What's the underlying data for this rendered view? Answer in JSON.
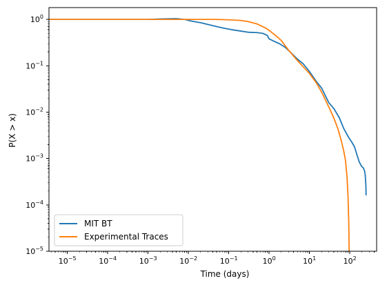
{
  "chart_data": {
    "type": "line",
    "title": "",
    "xlabel": "Time (days)",
    "ylabel": "P(X > x)",
    "xscale": "log",
    "yscale": "log",
    "xlim": [
      3.5e-06,
      460
    ],
    "ylim": [
      1e-05,
      1.8
    ],
    "x_ticks": [
      {
        "value": 1e-05,
        "base": "10",
        "exp": "−5"
      },
      {
        "value": 0.0001,
        "base": "10",
        "exp": "−4"
      },
      {
        "value": 0.001,
        "base": "10",
        "exp": "−3"
      },
      {
        "value": 0.01,
        "base": "10",
        "exp": "−2"
      },
      {
        "value": 0.1,
        "base": "10",
        "exp": "−1"
      },
      {
        "value": 1,
        "base": "10",
        "exp": "0"
      },
      {
        "value": 10,
        "base": "10",
        "exp": "1"
      },
      {
        "value": 100,
        "base": "10",
        "exp": "2"
      }
    ],
    "y_ticks": [
      {
        "value": 1e-05,
        "base": "10",
        "exp": "−5"
      },
      {
        "value": 0.0001,
        "base": "10",
        "exp": "−4"
      },
      {
        "value": 0.001,
        "base": "10",
        "exp": "−3"
      },
      {
        "value": 0.01,
        "base": "10",
        "exp": "−2"
      },
      {
        "value": 0.1,
        "base": "10",
        "exp": "−1"
      },
      {
        "value": 1,
        "base": "10",
        "exp": "0"
      }
    ],
    "grid": false,
    "legend_position": "lower-left",
    "series": [
      {
        "name": "MIT BT",
        "color": "#1f77b4",
        "points": [
          [
            3.5e-06,
            1.0
          ],
          [
            1e-05,
            1.0
          ],
          [
            0.0001,
            1.0
          ],
          [
            0.001,
            1.0
          ],
          [
            0.002,
            1.02
          ],
          [
            0.005,
            1.04
          ],
          [
            0.008,
            1.0
          ],
          [
            0.012,
            0.92
          ],
          [
            0.02,
            0.85
          ],
          [
            0.03,
            0.78
          ],
          [
            0.05,
            0.7
          ],
          [
            0.08,
            0.64
          ],
          [
            0.12,
            0.6
          ],
          [
            0.2,
            0.56
          ],
          [
            0.3,
            0.53
          ],
          [
            0.5,
            0.52
          ],
          [
            0.7,
            0.5
          ],
          [
            0.9,
            0.45
          ],
          [
            1.0,
            0.38
          ],
          [
            1.3,
            0.34
          ],
          [
            1.8,
            0.3
          ],
          [
            2.5,
            0.25
          ],
          [
            3.5,
            0.19
          ],
          [
            5,
            0.14
          ],
          [
            7,
            0.11
          ],
          [
            10,
            0.075
          ],
          [
            15,
            0.045
          ],
          [
            20,
            0.033
          ],
          [
            30,
            0.016
          ],
          [
            40,
            0.012
          ],
          [
            55,
            0.0075
          ],
          [
            70,
            0.0045
          ],
          [
            90,
            0.003
          ],
          [
            110,
            0.0023
          ],
          [
            130,
            0.0018
          ],
          [
            150,
            0.0012
          ],
          [
            170,
            0.00085
          ],
          [
            195,
            0.00068
          ],
          [
            215,
            0.00063
          ],
          [
            230,
            0.00055
          ],
          [
            240,
            0.00045
          ],
          [
            250,
            0.00025
          ],
          [
            252,
            0.00016
          ]
        ]
      },
      {
        "name": "Experimental Traces",
        "color": "#ff7f0e",
        "points": [
          [
            3.5e-06,
            1.0
          ],
          [
            1e-05,
            1.0
          ],
          [
            0.0001,
            1.0
          ],
          [
            0.001,
            1.0
          ],
          [
            0.01,
            1.0
          ],
          [
            0.05,
            1.0
          ],
          [
            0.1,
            0.98
          ],
          [
            0.2,
            0.95
          ],
          [
            0.3,
            0.9
          ],
          [
            0.5,
            0.8
          ],
          [
            0.8,
            0.66
          ],
          [
            1.0,
            0.58
          ],
          [
            1.5,
            0.44
          ],
          [
            2,
            0.35
          ],
          [
            3,
            0.22
          ],
          [
            5,
            0.13
          ],
          [
            7,
            0.095
          ],
          [
            10,
            0.068
          ],
          [
            15,
            0.042
          ],
          [
            20,
            0.027
          ],
          [
            30,
            0.013
          ],
          [
            40,
            0.0075
          ],
          [
            50,
            0.0045
          ],
          [
            60,
            0.0026
          ],
          [
            70,
            0.0015
          ],
          [
            78,
            0.0009
          ],
          [
            85,
            0.0004
          ],
          [
            90,
            0.00015
          ],
          [
            94,
            4e-05
          ],
          [
            96,
            1e-05
          ]
        ]
      }
    ]
  }
}
